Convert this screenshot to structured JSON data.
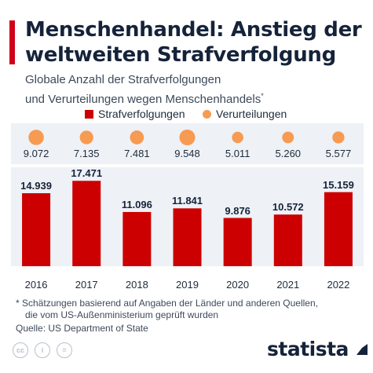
{
  "title": "Menschenhandel: Anstieg der weltweiten Strafverfolgung",
  "subtitle_line1": "Globale Anzahl der Strafverfolgungen",
  "subtitle_line2": "und Verurteilungen wegen Menschenhandels",
  "subtitle_marker": "*",
  "footnote_line1": "* Schätzungen basierend auf Angaben der Länder und anderen Quellen,",
  "footnote_line2": "die vom US-Außenministerium geprüft wurden",
  "source": "Quelle: US Department of State",
  "brand": "statista",
  "license_icons": [
    "cc-icon",
    "by-icon",
    "nd-icon"
  ],
  "colors": {
    "prosecutions": "#cc0000",
    "convictions": "#f79a52",
    "title": "#15233a",
    "accent": "#d0021b"
  },
  "chart_data": {
    "type": "bar",
    "categories": [
      "2016",
      "2017",
      "2018",
      "2019",
      "2020",
      "2021",
      "2022"
    ],
    "series": [
      {
        "name": "Strafverfolgungen",
        "type": "bar",
        "values": [
          14939,
          17471,
          11096,
          11841,
          9876,
          10572,
          15159
        ],
        "labels": [
          "14.939",
          "17.471",
          "11.096",
          "11.841",
          "9.876",
          "10.572",
          "15.159"
        ]
      },
      {
        "name": "Verurteilungen",
        "type": "bubble",
        "values": [
          9072,
          7135,
          7481,
          9548,
          5011,
          5260,
          5577
        ],
        "labels": [
          "9.072",
          "7.135",
          "7.481",
          "9.548",
          "5.011",
          "5.260",
          "5.577"
        ]
      }
    ],
    "legend_position": "top",
    "grid": false
  }
}
